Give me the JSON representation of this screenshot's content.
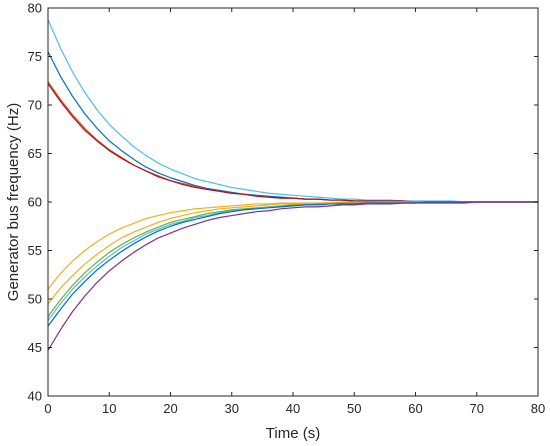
{
  "chart_data": {
    "type": "line",
    "xlabel": "Time (s)",
    "ylabel": "Generator bus frequency (Hz)",
    "xlim": [
      0,
      80
    ],
    "ylim": [
      40,
      80
    ],
    "xticks": [
      0,
      10,
      20,
      30,
      40,
      50,
      60,
      70,
      80
    ],
    "yticks": [
      40,
      45,
      50,
      55,
      60,
      65,
      70,
      75,
      80
    ],
    "xtick_labels": [
      "0",
      "10",
      "20",
      "30",
      "40",
      "50",
      "60",
      "70",
      "80"
    ],
    "ytick_labels": [
      "40",
      "45",
      "50",
      "55",
      "60",
      "65",
      "70",
      "75",
      "80"
    ],
    "grid": false,
    "box": true,
    "x": [
      0,
      2,
      4,
      6,
      8,
      10,
      12,
      14,
      16,
      18,
      20,
      22,
      24,
      26,
      28,
      30,
      32,
      34,
      36,
      38,
      40,
      42,
      44,
      46,
      48,
      50,
      52,
      54,
      56,
      58,
      60,
      62,
      64,
      66,
      68,
      70,
      72,
      74,
      76,
      78,
      80
    ],
    "series": [
      {
        "color": "#4DBEEE",
        "values": [
          78.8,
          75.9,
          73.4,
          71.3,
          69.5,
          68.0,
          66.8,
          65.7,
          64.8,
          64.0,
          63.4,
          62.9,
          62.4,
          62.1,
          61.8,
          61.5,
          61.3,
          61.1,
          60.9,
          60.8,
          60.7,
          60.6,
          60.5,
          60.4,
          60.3,
          60.3,
          60.2,
          60.2,
          60.2,
          60.1,
          60.1,
          60.1,
          60.1,
          60.1,
          60.0,
          60.0,
          60.0,
          60.0,
          60.0,
          60.0,
          60.0
        ]
      },
      {
        "color": "#0072BD",
        "values": [
          75.5,
          73.0,
          70.9,
          69.1,
          67.6,
          66.3,
          65.3,
          64.4,
          63.6,
          63.0,
          62.5,
          62.1,
          61.7,
          61.4,
          61.2,
          61.0,
          60.8,
          60.7,
          60.6,
          60.5,
          60.4,
          60.3,
          60.3,
          60.2,
          60.2,
          60.1,
          60.1,
          60.1,
          60.1,
          60.1,
          60.0,
          60.0,
          60.0,
          60.0,
          60.0,
          60.0,
          60.0,
          60.0,
          60.0,
          60.0,
          60.0
        ]
      },
      {
        "color": "#D95319",
        "values": [
          72.4,
          70.6,
          69.0,
          67.6,
          66.4,
          65.4,
          64.6,
          63.8,
          63.2,
          62.7,
          62.2,
          61.9,
          61.6,
          61.3,
          61.1,
          60.9,
          60.8,
          60.6,
          60.5,
          60.4,
          60.4,
          60.3,
          60.3,
          60.2,
          60.2,
          60.1,
          60.1,
          60.1,
          60.1,
          60.1,
          60.0,
          60.0,
          60.0,
          60.0,
          60.0,
          60.0,
          60.0,
          60.0,
          60.0,
          60.0,
          60.0
        ]
      },
      {
        "color": "#A2142F",
        "values": [
          72.2,
          70.4,
          68.8,
          67.4,
          66.3,
          65.3,
          64.5,
          63.8,
          63.2,
          62.6,
          62.2,
          61.8,
          61.5,
          61.3,
          61.1,
          60.9,
          60.8,
          60.6,
          60.5,
          60.4,
          60.4,
          60.3,
          60.3,
          60.2,
          60.2,
          60.1,
          60.1,
          60.1,
          60.1,
          60.1,
          60.0,
          60.0,
          60.0,
          60.0,
          60.0,
          60.0,
          60.0,
          60.0,
          60.0,
          60.0,
          60.0
        ]
      },
      {
        "color": "#EDB120",
        "values": [
          51.0,
          52.6,
          53.9,
          55.0,
          55.9,
          56.7,
          57.3,
          57.8,
          58.3,
          58.6,
          58.9,
          59.1,
          59.3,
          59.4,
          59.5,
          59.6,
          59.7,
          59.8,
          59.8,
          59.9,
          59.9,
          59.9,
          59.9,
          59.9,
          60.0,
          60.0,
          60.0,
          60.0,
          60.0,
          60.0,
          60.0,
          60.0,
          60.0,
          60.0,
          60.0,
          60.0,
          60.0,
          60.0,
          60.0,
          60.0,
          60.0
        ]
      },
      {
        "color": "#EDB120",
        "values": [
          49.5,
          51.1,
          52.4,
          53.6,
          54.6,
          55.5,
          56.3,
          56.9,
          57.4,
          57.9,
          58.3,
          58.6,
          58.9,
          59.1,
          59.3,
          59.4,
          59.5,
          59.6,
          59.7,
          59.8,
          59.8,
          59.8,
          59.9,
          59.9,
          59.9,
          59.9,
          59.9,
          60.0,
          60.0,
          60.0,
          60.0,
          60.0,
          60.0,
          60.0,
          60.0,
          60.0,
          60.0,
          60.0,
          60.0,
          60.0,
          60.0
        ]
      },
      {
        "color": "#77AC30",
        "values": [
          48.2,
          49.9,
          51.4,
          52.7,
          53.8,
          54.8,
          55.6,
          56.3,
          56.9,
          57.4,
          57.9,
          58.2,
          58.5,
          58.8,
          59.0,
          59.2,
          59.3,
          59.4,
          59.5,
          59.6,
          59.7,
          59.7,
          59.8,
          59.8,
          59.9,
          59.9,
          59.9,
          59.9,
          59.9,
          59.9,
          60.0,
          60.0,
          60.0,
          60.0,
          60.0,
          60.0,
          60.0,
          60.0,
          60.0,
          60.0,
          60.0
        ]
      },
      {
        "color": "#4DBEEE",
        "values": [
          47.8,
          49.5,
          51.0,
          52.3,
          53.4,
          54.4,
          55.3,
          56.0,
          56.7,
          57.2,
          57.7,
          58.0,
          58.4,
          58.6,
          58.9,
          59.1,
          59.2,
          59.3,
          59.5,
          59.5,
          59.6,
          59.7,
          59.7,
          59.8,
          59.8,
          59.8,
          59.9,
          59.9,
          59.9,
          59.9,
          59.9,
          60.0,
          60.0,
          60.0,
          60.0,
          60.0,
          60.0,
          60.0,
          60.0,
          60.0,
          60.0
        ]
      },
      {
        "color": "#0072BD",
        "values": [
          47.2,
          48.9,
          50.5,
          51.8,
          53.0,
          54.0,
          54.9,
          55.7,
          56.4,
          57.0,
          57.5,
          57.9,
          58.2,
          58.5,
          58.8,
          59.0,
          59.2,
          59.3,
          59.4,
          59.5,
          59.6,
          59.7,
          59.7,
          59.8,
          59.8,
          59.8,
          59.9,
          59.9,
          59.9,
          59.9,
          59.9,
          60.0,
          60.0,
          60.0,
          60.0,
          60.0,
          60.0,
          60.0,
          60.0,
          60.0,
          60.0
        ]
      },
      {
        "color": "#7E2F8E",
        "values": [
          44.7,
          46.8,
          48.7,
          50.3,
          51.7,
          52.9,
          53.9,
          54.8,
          55.6,
          56.3,
          56.8,
          57.3,
          57.7,
          58.1,
          58.4,
          58.6,
          58.8,
          59.0,
          59.1,
          59.3,
          59.4,
          59.5,
          59.5,
          59.6,
          59.7,
          59.7,
          59.8,
          59.8,
          59.8,
          59.9,
          59.9,
          59.9,
          59.9,
          59.9,
          59.9,
          60.0,
          60.0,
          60.0,
          60.0,
          60.0,
          60.0
        ]
      }
    ]
  }
}
